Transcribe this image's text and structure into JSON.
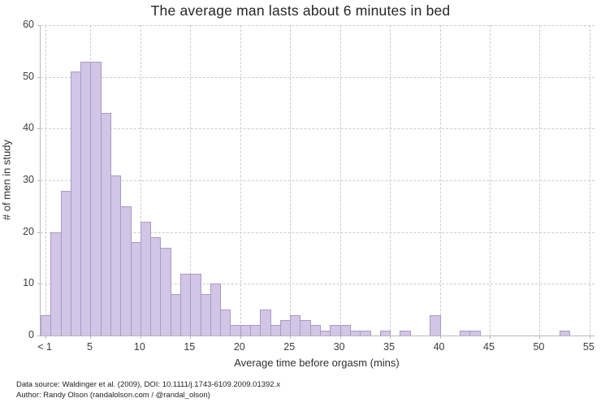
{
  "title": "The average man lasts about 6 minutes in bed",
  "footer": {
    "line1": "Data source: Waldinger et al. (2009), DOI: 10.1111/j.1743-6109.2009.01392.x",
    "line2": "Author: Randy Olson (randalolson.com / @randal_olson)"
  },
  "colors": {
    "bar_fill": "#d2c5e5",
    "bar_edge": "#a89ac6",
    "grid": "#cdcdcd",
    "spine": "#b9b9b9",
    "title_text": "#262626",
    "tick_text": "#3d3d3d"
  },
  "chart_data": {
    "type": "bar",
    "subtype": "histogram",
    "title": "The average man lasts about 6 minutes in bed",
    "xlabel": "Average time before orgasm (mins)",
    "ylabel": "# of men in study",
    "bin_width_minutes": 1,
    "bin_start_minutes": 0,
    "counts": [
      4,
      20,
      28,
      51,
      53,
      53,
      43,
      31,
      25,
      18,
      22,
      19,
      17,
      8,
      12,
      12,
      8,
      10,
      5,
      2,
      2,
      2,
      5,
      2,
      3,
      4,
      3,
      2,
      1,
      2,
      2,
      1,
      1,
      0,
      1,
      0,
      1,
      0,
      0,
      4,
      0,
      0,
      1,
      1,
      0,
      0,
      0,
      0,
      0,
      0,
      0,
      0,
      1,
      0,
      0
    ],
    "xlim": [
      0,
      55.5
    ],
    "ylim": [
      0,
      60
    ],
    "xticks": [
      {
        "pos": 0.5,
        "label": "< 1"
      },
      {
        "pos": 5,
        "label": "5"
      },
      {
        "pos": 10,
        "label": "10"
      },
      {
        "pos": 15,
        "label": "15"
      },
      {
        "pos": 20,
        "label": "20"
      },
      {
        "pos": 25,
        "label": "25"
      },
      {
        "pos": 30,
        "label": "30"
      },
      {
        "pos": 35,
        "label": "35"
      },
      {
        "pos": 40,
        "label": "40"
      },
      {
        "pos": 45,
        "label": "45"
      },
      {
        "pos": 50,
        "label": "50"
      },
      {
        "pos": 55,
        "label": "55"
      }
    ],
    "yticks": [
      0,
      10,
      20,
      30,
      40,
      50,
      60
    ],
    "grid": "dashed, horizontal at yticks and vertical at xticks, behind bars",
    "legend": "none"
  }
}
